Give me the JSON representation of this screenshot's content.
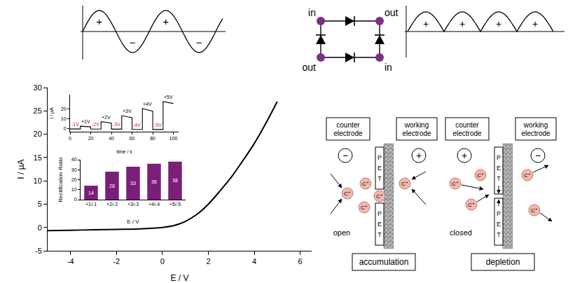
{
  "chart_data": [
    {
      "type": "line",
      "x_label": "E / V",
      "y_label": "I / µA",
      "x": [
        -5,
        -4,
        -3,
        -2,
        -1,
        0,
        0.5,
        1,
        1.5,
        2,
        2.5,
        3,
        3.5,
        4,
        4.5,
        5
      ],
      "values": [
        -0.7,
        -0.6,
        -0.5,
        -0.4,
        -0.3,
        0,
        0.4,
        1.3,
        2.8,
        5,
        7.8,
        10.8,
        14.3,
        18,
        22.3,
        27
      ],
      "color": "#000000",
      "xlim": [
        -5,
        6.5
      ],
      "xticks": [
        -4,
        -2,
        0,
        2,
        4,
        6
      ],
      "ylim": [
        -5,
        30
      ],
      "yticks": [
        -5,
        0,
        5,
        10,
        15,
        20,
        25,
        30
      ],
      "grid": false
    },
    {
      "type": "line",
      "x_label": "time / s",
      "y_label": "I / µA",
      "x": [
        0,
        10,
        10,
        20,
        20,
        30,
        30,
        40,
        40,
        50,
        50,
        60,
        60,
        70,
        70,
        80,
        80,
        90,
        90,
        100
      ],
      "values": [
        -0.3,
        -0.3,
        2.5,
        1.8,
        -0.4,
        -0.4,
        7,
        5.5,
        -0.5,
        -0.5,
        13,
        11,
        -0.7,
        -0.7,
        20,
        17.5,
        -0.8,
        -0.8,
        27,
        25
      ],
      "color": "#000000",
      "xlim": [
        0,
        105
      ],
      "xticks": [
        0,
        20,
        40,
        60,
        80,
        100
      ],
      "ylim": [
        -3,
        34
      ],
      "yticks": [
        0,
        10,
        20
      ],
      "grid": false,
      "annotations": [
        {
          "text": "-1V",
          "x": 5,
          "y": 0.5,
          "color": "#cc2222"
        },
        {
          "text": "+1V",
          "x": 15,
          "y": 3.3,
          "color": "#000000"
        },
        {
          "text": "-2V",
          "x": 25,
          "y": 0.4,
          "color": "#cc2222"
        },
        {
          "text": "+2V",
          "x": 35,
          "y": 7.8,
          "color": "#000000"
        },
        {
          "text": "-3V",
          "x": 45,
          "y": 0.3,
          "color": "#cc2222"
        },
        {
          "text": "+3V",
          "x": 55,
          "y": 13.8,
          "color": "#000000"
        },
        {
          "text": "-4V",
          "x": 65,
          "y": 0.1,
          "color": "#cc2222"
        },
        {
          "text": "+4V",
          "x": 75,
          "y": 20.8,
          "color": "#000000"
        },
        {
          "text": "-5V",
          "x": 85,
          "y": 0,
          "color": "#cc2222"
        },
        {
          "text": "+5V",
          "x": 95,
          "y": 27.8,
          "color": "#000000"
        }
      ]
    },
    {
      "type": "bar",
      "x_label": "E / V",
      "y_label": "Rectification Ratio",
      "categories": [
        "+1/-1",
        "+2/-2",
        "+3/-3",
        "+4/-4",
        "+5/-5"
      ],
      "values": [
        14,
        28,
        33,
        36,
        38
      ],
      "color": "#7b1e7a",
      "ylim": [
        0,
        40
      ],
      "yticks": [
        0,
        10,
        20,
        30,
        40
      ],
      "data_labels": true,
      "grid": false
    }
  ],
  "top_schematic": {
    "input_wave_signs": [
      "+",
      "−",
      "+",
      "−"
    ],
    "bridge_nodes": [
      "in",
      "out",
      "out",
      "in"
    ],
    "output_wave_signs": [
      "+",
      "+",
      "+",
      "+"
    ]
  },
  "mechanism": {
    "ion_label": "C⁺",
    "panels": [
      {
        "left_electrode": "counter electrode",
        "right_electrode": "working electrode",
        "left_polarity": "−",
        "right_polarity": "+",
        "membrane": [
          "P",
          "E",
          "T"
        ],
        "state": "open",
        "caption": "accumulation"
      },
      {
        "left_electrode": "counter electrode",
        "right_electrode": "working electrode",
        "left_polarity": "+",
        "right_polarity": "−",
        "membrane": [
          "P",
          "E",
          "T"
        ],
        "state": "closed",
        "caption": "depletion"
      }
    ]
  }
}
